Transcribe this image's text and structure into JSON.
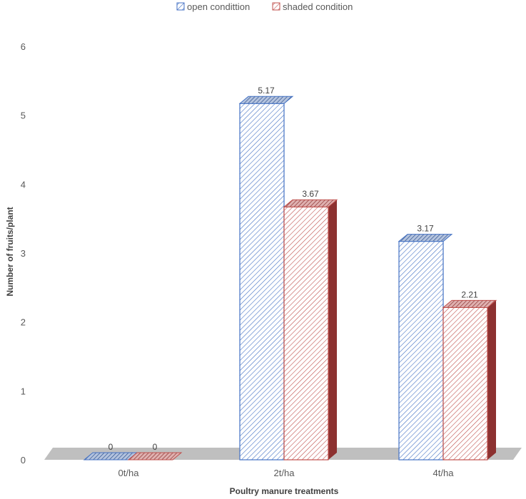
{
  "chart_data": {
    "type": "bar",
    "title": "",
    "xlabel": "Poultry manure treatments",
    "ylabel": "Number of fruits/plant",
    "categories": [
      "0t/ha",
      "2t/ha",
      "4t/ha"
    ],
    "series": [
      {
        "name": "open condittion",
        "values": [
          0,
          5.17,
          3.17
        ],
        "color": "#4472C4"
      },
      {
        "name": "shaded condition",
        "values": [
          0,
          3.67,
          2.21
        ],
        "color": "#C0504D"
      }
    ],
    "data_labels": [
      [
        "0",
        "5.17",
        "3.17"
      ],
      [
        "0",
        "3.67",
        "2.21"
      ]
    ],
    "yticks": [
      "0",
      "1",
      "2",
      "3",
      "4",
      "5",
      "6"
    ],
    "ylim": [
      0,
      6
    ],
    "grid": false,
    "legend_position": "top",
    "style": "3d-clustered-column-hatched"
  }
}
